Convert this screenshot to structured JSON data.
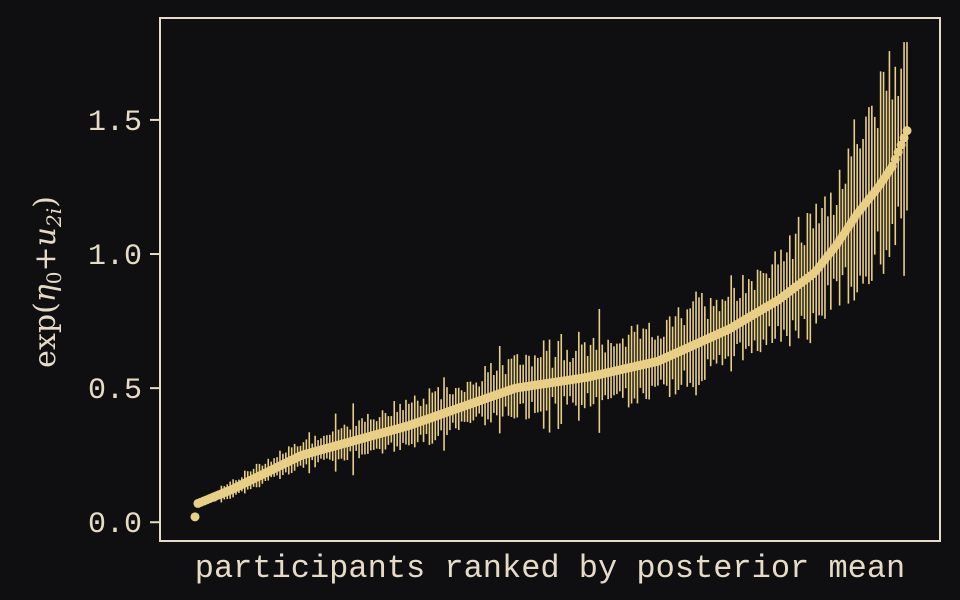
{
  "chart_data": {
    "type": "scatter",
    "subtype": "caterpillar-with-intervals",
    "xlabel": "participants ranked by posterior mean",
    "ylabel": "exp(η₀+u₂ᵢ)",
    "ylabel_parts": {
      "prefix": "exp(",
      "eta": "η",
      "eta_sub": "0",
      "plus": "+",
      "u": "u",
      "u_sub": "2i",
      "suffix": ")"
    },
    "yticks": [
      0.0,
      0.5,
      1.0,
      1.5
    ],
    "ytick_labels": [
      "0.0",
      "0.5",
      "1.0",
      "1.5"
    ],
    "xlim": [
      0,
      250
    ],
    "ylim": [
      -0.07,
      1.88
    ],
    "n_participants": 244,
    "grid": false,
    "legend": "none",
    "colors": {
      "background": "#0f0f11",
      "frame": "#e6dcc6",
      "marks": "#e8cf85",
      "text": "#e6dcc6"
    },
    "curve_knots": {
      "rank_fraction": [
        0,
        0.004,
        0.05,
        0.15,
        0.3,
        0.45,
        0.55,
        0.65,
        0.75,
        0.82,
        0.87,
        0.9,
        0.93,
        0.96,
        0.98,
        1.0
      ],
      "posterior_mean": [
        0.02,
        0.07,
        0.12,
        0.25,
        0.36,
        0.5,
        0.54,
        0.6,
        0.72,
        0.83,
        0.93,
        1.03,
        1.15,
        1.25,
        1.33,
        1.46
      ]
    },
    "interval_halfwidth": {
      "rank_fraction": [
        0,
        0.02,
        0.05,
        0.3,
        0.6,
        0.8,
        0.9,
        0.95,
        1.0
      ],
      "value": [
        0.0,
        0.015,
        0.03,
        0.07,
        0.1,
        0.14,
        0.2,
        0.27,
        0.3
      ]
    },
    "interval_extremes": {
      "max_upper": 1.79,
      "min_lower": 0.05
    }
  }
}
